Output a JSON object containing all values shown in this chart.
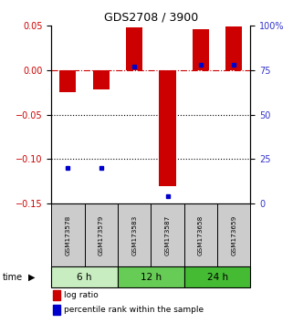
{
  "title": "GDS2708 / 3900",
  "samples": [
    "GSM173578",
    "GSM173579",
    "GSM173583",
    "GSM173587",
    "GSM173658",
    "GSM173659"
  ],
  "time_groups": [
    {
      "label": "6 h",
      "samples": [
        0,
        1
      ],
      "color": "#c8edc0"
    },
    {
      "label": "12 h",
      "samples": [
        2,
        3
      ],
      "color": "#66cc55"
    },
    {
      "label": "24 h",
      "samples": [
        4,
        5
      ],
      "color": "#44bb33"
    }
  ],
  "log_ratio": [
    -0.025,
    -0.022,
    0.048,
    -0.13,
    0.046,
    0.049
  ],
  "percentile_rank": [
    20,
    20,
    77,
    4,
    78,
    78
  ],
  "bar_color": "#cc0000",
  "dot_color": "#0000cc",
  "ylim": [
    -0.15,
    0.05
  ],
  "yticks_left": [
    -0.15,
    -0.1,
    -0.05,
    0.0,
    0.05
  ],
  "yticks_right": [
    0,
    25,
    50,
    75,
    100
  ],
  "ylabel_left_color": "#cc0000",
  "ylabel_right_color": "#3333cc",
  "hline_color": "#cc0000",
  "dotted_lines": [
    -0.05,
    -0.1
  ],
  "legend_red_label": "log ratio",
  "legend_blue_label": "percentile rank within the sample",
  "bar_width": 0.5,
  "sample_box_color": "#cccccc"
}
